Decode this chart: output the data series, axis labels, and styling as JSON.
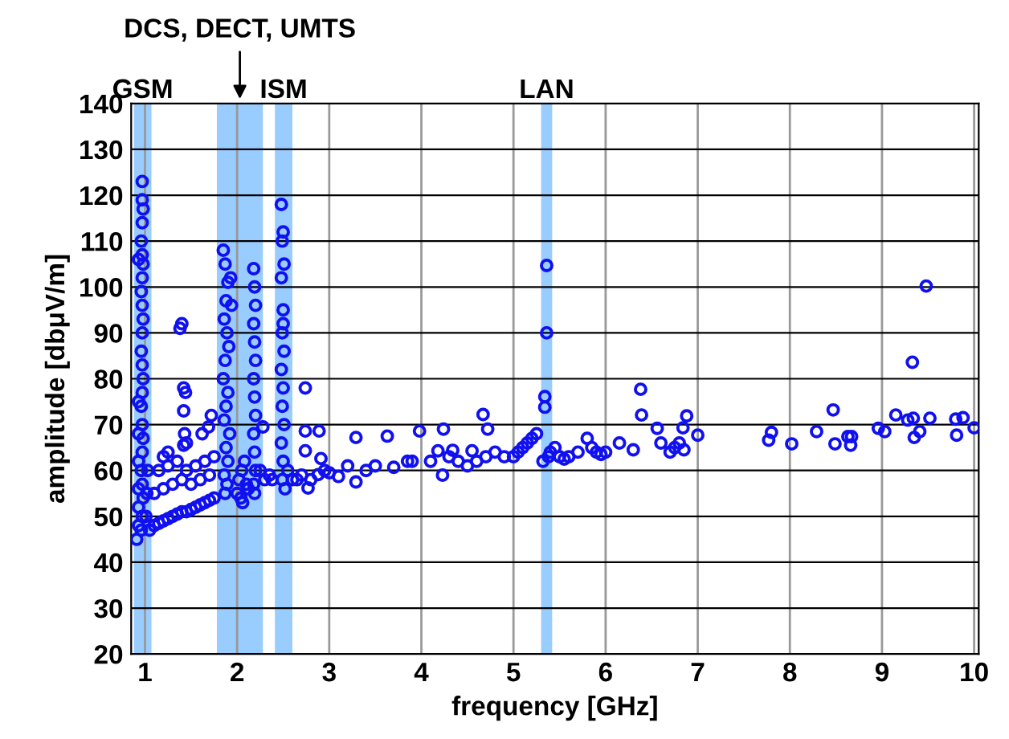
{
  "chart_data": {
    "type": "scatter",
    "xlabel": "frequency [GHz]",
    "ylabel": "amplitude [dbμV/m]",
    "xlim": [
      0.85,
      10.05
    ],
    "ylim": [
      20,
      140
    ],
    "xticks": [
      1,
      2,
      3,
      4,
      5,
      6,
      7,
      8,
      9,
      10
    ],
    "yticks": [
      20,
      30,
      40,
      50,
      60,
      70,
      80,
      90,
      100,
      110,
      120,
      130,
      140
    ],
    "grid": true,
    "marker": "circle",
    "legend": false,
    "bands": [
      {
        "axis": "x",
        "from": 0.88,
        "to": 1.07,
        "label": "GSM",
        "color": "#99ccff"
      },
      {
        "axis": "x",
        "from": 1.78,
        "to": 2.28,
        "label": "DCS, DECT, UMTS",
        "color": "#99ccff"
      },
      {
        "axis": "x",
        "from": 2.41,
        "to": 2.6,
        "label": "ISM",
        "color": "#99ccff"
      },
      {
        "axis": "x",
        "from": 5.3,
        "to": 5.42,
        "label": "LAN",
        "color": "#99ccff"
      }
    ],
    "series": [
      {
        "color": "#1010f0",
        "x": [
          0.97,
          0.97,
          0.98,
          0.97,
          0.96,
          0.97,
          0.98,
          0.97,
          0.96,
          0.97,
          0.98,
          0.97,
          0.96,
          0.97,
          0.98,
          0.97,
          0.96,
          0.97,
          0.98,
          0.97,
          0.96,
          0.97,
          0.98,
          0.97,
          0.96,
          0.93,
          0.93,
          0.93,
          0.93,
          0.93,
          0.93,
          0.93,
          0.91,
          1.02,
          1.03,
          1.01,
          1.05,
          1.1,
          1.15,
          1.2,
          1.25,
          1.3,
          1.35,
          1.4,
          1.45,
          1.5,
          1.55,
          1.6,
          1.65,
          1.7,
          1.75,
          1.1,
          1.2,
          1.3,
          1.4,
          1.5,
          1.6,
          1.7,
          1.15,
          1.25,
          1.35,
          1.45,
          1.55,
          1.65,
          1.75,
          1.38,
          1.4,
          1.44,
          1.42,
          1.42,
          1.25,
          1.2,
          1.69,
          1.62,
          1.45,
          1.72,
          1.43,
          1.42,
          1.85,
          1.87,
          1.9,
          1.88,
          1.86,
          1.89,
          1.91,
          1.87,
          1.85,
          1.9,
          1.88,
          1.86,
          1.92,
          1.88,
          1.9,
          1.86,
          1.89,
          1.87,
          1.94,
          1.93,
          2.0,
          2.02,
          2.05,
          2.08,
          2.1,
          2.12,
          2.06,
          2.04,
          2.18,
          2.19,
          2.2,
          2.18,
          2.19,
          2.2,
          2.18,
          2.19,
          2.2,
          2.18,
          2.19,
          2.2,
          2.18,
          2.19,
          2.28,
          2.25,
          2.3,
          2.35,
          2.38,
          2.48,
          2.5,
          2.49,
          2.51,
          2.48,
          2.5,
          2.49,
          2.51,
          2.48,
          2.5,
          2.49,
          2.51,
          2.48,
          2.5,
          2.49,
          2.52,
          2.5,
          2.55,
          2.6,
          2.74,
          2.74,
          2.89,
          2.74,
          2.91,
          2.88,
          2.77,
          2.65,
          2.7,
          2.8,
          2.95,
          3.0,
          3.1,
          3.29,
          3.29,
          3.63,
          3.7,
          3.98,
          3.5,
          3.4,
          3.2,
          3.85,
          3.9,
          4.24,
          4.18,
          4.34,
          4.55,
          4.23,
          4.67,
          4.72,
          4.1,
          4.3,
          4.4,
          4.5,
          4.6,
          4.7,
          4.8,
          4.9,
          5.0,
          5.05,
          5.1,
          5.15,
          5.2,
          5.25,
          5.36,
          5.36,
          5.34,
          5.34,
          5.32,
          5.38,
          5.4,
          5.45,
          5.5,
          5.55,
          5.6,
          5.7,
          5.8,
          5.85,
          5.9,
          5.95,
          6.0,
          6.15,
          6.3,
          6.38,
          6.39,
          6.88,
          6.56,
          7.0,
          6.84,
          6.6,
          6.7,
          6.75,
          6.8,
          6.85,
          7.77,
          7.8,
          8.02,
          8.29,
          8.47,
          8.49,
          8.63,
          8.66,
          8.67,
          8.96,
          9.03,
          9.15,
          9.28,
          9.34,
          9.33,
          9.48,
          9.35,
          9.41,
          9.52,
          9.8,
          9.88,
          9.81,
          10.0
        ],
        "values": [
          123,
          119,
          117,
          114,
          110,
          107,
          105,
          102,
          99,
          96,
          93,
          90,
          86,
          83,
          80,
          77,
          74,
          70,
          67,
          64,
          60,
          57,
          54,
          50,
          47,
          48,
          52,
          56,
          62,
          68,
          75,
          106,
          45,
          55,
          60,
          50,
          47,
          48,
          48.5,
          49,
          49.5,
          50,
          50.5,
          51,
          51,
          51.5,
          52,
          52.5,
          53,
          53.5,
          54,
          55,
          56,
          57,
          58,
          57,
          58,
          59,
          60,
          61,
          62,
          60,
          61,
          62,
          63,
          91,
          92,
          77,
          73,
          78,
          64,
          63,
          69.5,
          68,
          66,
          72,
          68,
          65.5,
          108,
          105,
          101,
          97,
          93,
          90,
          87,
          84,
          80,
          77,
          74,
          71,
          68,
          65,
          62,
          59,
          57,
          55,
          96,
          102,
          55,
          58,
          60,
          62,
          57,
          56,
          53,
          54,
          104,
          100,
          96,
          92,
          88,
          84,
          80,
          76,
          72,
          68,
          64,
          60,
          57,
          55,
          69.5,
          60,
          58,
          59,
          58,
          118,
          112,
          110,
          105,
          102,
          95,
          90,
          86,
          82,
          78,
          74,
          70,
          66,
          62,
          58,
          56,
          92,
          60,
          58,
          78,
          68.6,
          68.6,
          64.3,
          62.6,
          59.1,
          56.2,
          58,
          59,
          58,
          60,
          59.5,
          58.7,
          57.5,
          67.2,
          67.5,
          60.7,
          68.6,
          61,
          60,
          61,
          62,
          62,
          69,
          64.3,
          64.4,
          64.3,
          59,
          72.2,
          69,
          62,
          63,
          62,
          61,
          62,
          63,
          64,
          63,
          63,
          64,
          65,
          66,
          67,
          68,
          104.7,
          90,
          76.1,
          73.8,
          62,
          63,
          64,
          65,
          63,
          62.5,
          63,
          64,
          67,
          65,
          64,
          63.5,
          64,
          66,
          64.5,
          77.7,
          72.1,
          71.9,
          69.2,
          67.7,
          69.3,
          66,
          64,
          65,
          66,
          64.5,
          66.6,
          68.3,
          65.8,
          68.5,
          73.2,
          65.8,
          67.4,
          65.5,
          67.4,
          69.2,
          68.5,
          72.1,
          71,
          71.4,
          83.6,
          100.2,
          67.2,
          68.5,
          71.4,
          71.2,
          71.5,
          67.7,
          69.3
        ]
      }
    ]
  }
}
